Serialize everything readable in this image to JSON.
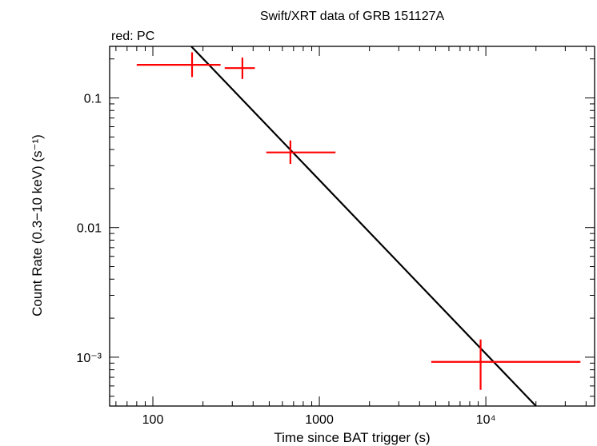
{
  "chart_data": {
    "type": "scatter",
    "title": "Swift/XRT data of GRB 151127A",
    "subtitle": "red: PC",
    "xlabel": "Time since BAT trigger (s)",
    "ylabel": "Count Rate (0.3−10 keV) (s⁻¹)",
    "x_scale": "log",
    "y_scale": "log",
    "xlim": [
      55,
      45000
    ],
    "ylim": [
      0.00042,
      0.25
    ],
    "x_ticks": [
      {
        "value": 100,
        "label": "100"
      },
      {
        "value": 1000,
        "label": "1000"
      },
      {
        "value": 10000,
        "label": "10⁴"
      }
    ],
    "y_ticks": [
      {
        "value": 0.1,
        "label": "0.1"
      },
      {
        "value": 0.01,
        "label": "0.01"
      },
      {
        "value": 0.001,
        "label": "10⁻³"
      }
    ],
    "series": [
      {
        "name": "PC",
        "color": "#ff0000",
        "points": [
          {
            "x": 172,
            "x_lo": 80,
            "x_hi": 255,
            "y": 0.18,
            "y_lo": 0.145,
            "y_hi": 0.225
          },
          {
            "x": 345,
            "x_lo": 270,
            "x_hi": 410,
            "y": 0.17,
            "y_lo": 0.14,
            "y_hi": 0.205
          },
          {
            "x": 670,
            "x_lo": 480,
            "x_hi": 1250,
            "y": 0.038,
            "y_lo": 0.031,
            "y_hi": 0.047
          },
          {
            "x": 9300,
            "x_lo": 4700,
            "x_hi": 37000,
            "y": 0.00092,
            "y_lo": 0.00056,
            "y_hi": 0.00137
          }
        ]
      }
    ],
    "model": {
      "name": "power-law fit",
      "color": "#000000",
      "points": [
        {
          "x": 170,
          "y": 0.25
        },
        {
          "x": 20000,
          "y": 0.00042
        }
      ]
    }
  }
}
